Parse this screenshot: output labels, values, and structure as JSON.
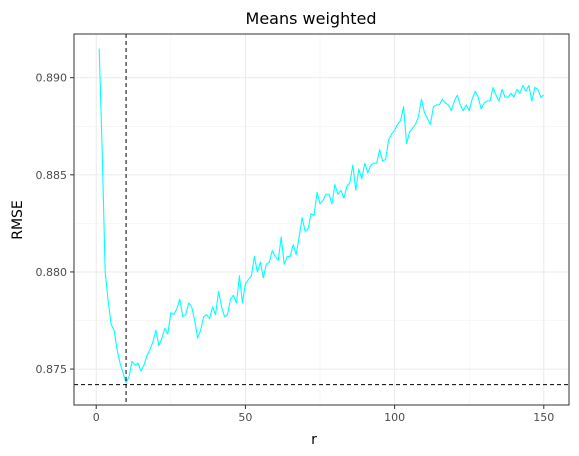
{
  "chart_data": {
    "type": "line",
    "title": "Means weighted",
    "xlabel": "r",
    "ylabel": "RMSE",
    "xlim": [
      -7.45,
      158.45
    ],
    "ylim": [
      0.87315,
      0.89225
    ],
    "xticks": [
      0,
      50,
      100,
      150
    ],
    "xtick_labels": [
      "0",
      "50",
      "100",
      "150"
    ],
    "yticks": [
      0.875,
      0.88,
      0.885,
      0.89
    ],
    "ytick_labels": [
      "0.875",
      "0.880",
      "0.885",
      "0.890"
    ],
    "grid": true,
    "series": [
      {
        "color": "#00ffff",
        "x": [
          1,
          2,
          3,
          4,
          5,
          6,
          7,
          8,
          9,
          10,
          11,
          12,
          13,
          14,
          15,
          16,
          17,
          18,
          19,
          20,
          21,
          22,
          23,
          24,
          25,
          26,
          27,
          28,
          29,
          30,
          31,
          32,
          33,
          34,
          35,
          36,
          37,
          38,
          39,
          40,
          41,
          42,
          43,
          44,
          45,
          46,
          47,
          48,
          49,
          50,
          51,
          52,
          53,
          54,
          55,
          56,
          57,
          58,
          59,
          60,
          61,
          62,
          63,
          64,
          65,
          66,
          67,
          68,
          69,
          70,
          71,
          72,
          73,
          74,
          75,
          76,
          77,
          78,
          79,
          80,
          81,
          82,
          83,
          84,
          85,
          86,
          87,
          88,
          89,
          90,
          91,
          92,
          93,
          94,
          95,
          96,
          97,
          98,
          99,
          100,
          101,
          102,
          103,
          104,
          105,
          106,
          107,
          108,
          109,
          110,
          111,
          112,
          113,
          114,
          115,
          116,
          117,
          118,
          119,
          120,
          121,
          122,
          123,
          124,
          125,
          126,
          127,
          128,
          129,
          130,
          131,
          132,
          133,
          134,
          135,
          136,
          137,
          138,
          139,
          140,
          141,
          142,
          143,
          144,
          145,
          146,
          147,
          148,
          149,
          150
        ],
        "y": [
          0.8915,
          0.8862,
          0.88,
          0.8785,
          0.8773,
          0.877,
          0.876,
          0.8753,
          0.8748,
          0.8743,
          0.8746,
          0.8754,
          0.8752,
          0.8753,
          0.8749,
          0.8752,
          0.8757,
          0.876,
          0.8764,
          0.877,
          0.8762,
          0.8766,
          0.8771,
          0.8768,
          0.8779,
          0.8778,
          0.8781,
          0.8786,
          0.8777,
          0.8778,
          0.8784,
          0.8782,
          0.8775,
          0.8766,
          0.877,
          0.8777,
          0.8778,
          0.8776,
          0.8782,
          0.8778,
          0.879,
          0.8782,
          0.8777,
          0.8778,
          0.8786,
          0.8788,
          0.8784,
          0.8798,
          0.8784,
          0.8794,
          0.8796,
          0.8798,
          0.8808,
          0.88,
          0.8805,
          0.8797,
          0.8804,
          0.8805,
          0.8811,
          0.8808,
          0.8806,
          0.8818,
          0.8804,
          0.8808,
          0.8808,
          0.8814,
          0.8809,
          0.8818,
          0.8828,
          0.8821,
          0.8822,
          0.883,
          0.8829,
          0.8841,
          0.8835,
          0.8837,
          0.884,
          0.884,
          0.8835,
          0.8845,
          0.884,
          0.8842,
          0.8838,
          0.8844,
          0.8846,
          0.8855,
          0.8842,
          0.8853,
          0.8848,
          0.8856,
          0.8851,
          0.8855,
          0.8856,
          0.8856,
          0.8863,
          0.8857,
          0.8858,
          0.8868,
          0.8871,
          0.8873,
          0.8876,
          0.8878,
          0.8885,
          0.8866,
          0.8872,
          0.8874,
          0.8876,
          0.888,
          0.8889,
          0.8882,
          0.8879,
          0.8876,
          0.8885,
          0.8886,
          0.8886,
          0.8889,
          0.8887,
          0.8886,
          0.8883,
          0.8888,
          0.8891,
          0.8886,
          0.8883,
          0.8886,
          0.8883,
          0.8889,
          0.8893,
          0.889,
          0.8884,
          0.8887,
          0.8888,
          0.8888,
          0.8895,
          0.8891,
          0.8888,
          0.8894,
          0.889,
          0.889,
          0.8892,
          0.889,
          0.8894,
          0.8892,
          0.8896,
          0.8893,
          0.8896,
          0.8888,
          0.8895,
          0.8894,
          0.889,
          0.8891
        ]
      }
    ],
    "reference_lines": [
      {
        "orientation": "vertical",
        "x": 10,
        "style": "dashed",
        "color": "#000000"
      },
      {
        "orientation": "horizontal",
        "y": 0.8742,
        "style": "dashed",
        "color": "#000000"
      }
    ]
  }
}
